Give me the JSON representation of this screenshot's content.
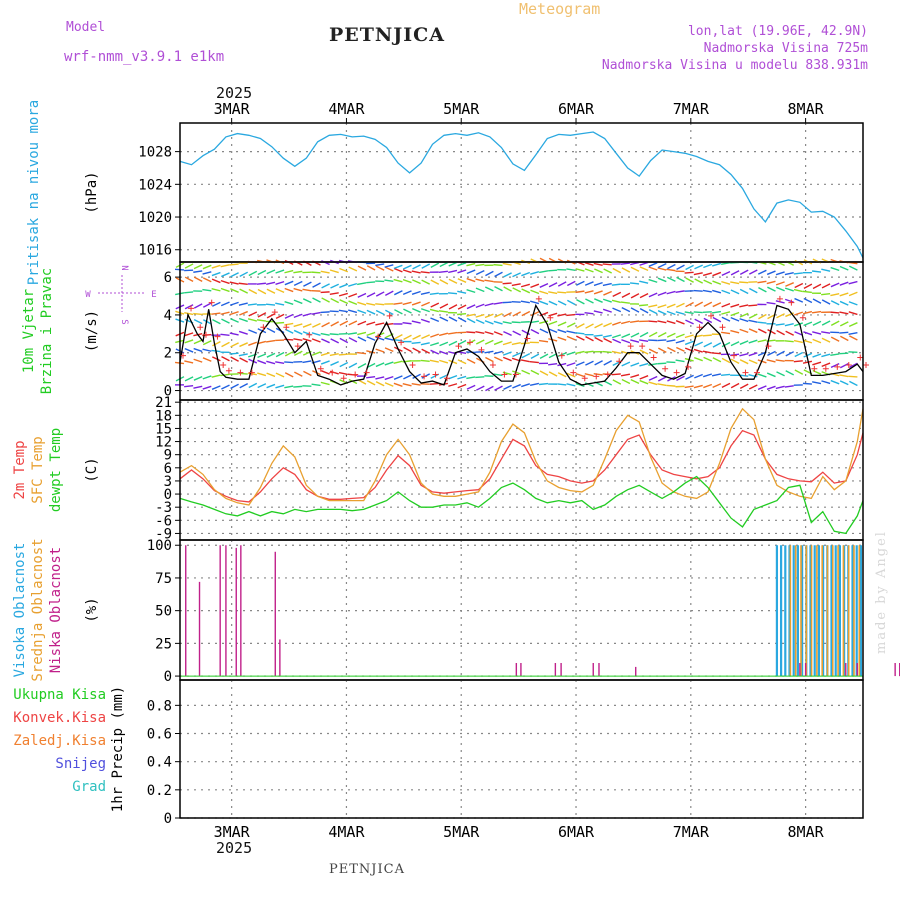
{
  "header": {
    "model_label": "Model",
    "model_name": "wrf-nmm_v3.9.1 e1km",
    "title": "PETNJICA",
    "meteogram_label": "Meteogram",
    "lonlat": "lon,lat (19.96E, 42.9N)",
    "elevation": "Nadmorska Visina 725m",
    "model_elevation": "Nadmorska Visina u modelu 838.931m",
    "year_top": "2025",
    "year_bottom": "2025",
    "footer": "PETNJICA",
    "credit": "made by Angel"
  },
  "colors": {
    "pressure": "#2aa8e0",
    "wind_label": "#22cc22",
    "temp2m": "#ee4444",
    "sfc_temp": "#e8a030",
    "dewpoint": "#22cc22",
    "high_cloud": "#2aa8e0",
    "mid_cloud": "#e8a030",
    "low_cloud": "#c0208a",
    "total_precip": "#22cc22",
    "conv_precip": "#ee4444",
    "frozen_precip": "#f08030",
    "snow": "#5050dd",
    "graupel": "#30c0c0"
  },
  "chart_data": {
    "type": "line",
    "x_ticks": [
      "3MAR",
      "4MAR",
      "5MAR",
      "6MAR",
      "7MAR",
      "8MAR"
    ],
    "x_range_days": [
      -0.45,
      5.5
    ],
    "panels": [
      {
        "id": "pressure",
        "labels": [
          "Pritisak na nivou mora"
        ],
        "unit": "(hPa)",
        "ylim": [
          1014.5,
          1031.5
        ],
        "yticks": [
          1016,
          1020,
          1024,
          1028
        ],
        "series": [
          {
            "key": "pressure",
            "x": [
              -0.45,
              -0.35,
              -0.25,
              -0.15,
              -0.05,
              0.05,
              0.15,
              0.25,
              0.35,
              0.45,
              0.55,
              0.65,
              0.75,
              0.85,
              0.95,
              1.05,
              1.15,
              1.25,
              1.35,
              1.45,
              1.55,
              1.65,
              1.75,
              1.85,
              1.95,
              2.05,
              2.15,
              2.25,
              2.35,
              2.45,
              2.55,
              2.65,
              2.75,
              2.85,
              2.95,
              3.05,
              3.15,
              3.25,
              3.35,
              3.45,
              3.55,
              3.65,
              3.75,
              3.85,
              3.95,
              4.05,
              4.15,
              4.25,
              4.35,
              4.45,
              4.55,
              4.65,
              4.75,
              4.85,
              4.95,
              5.05,
              5.15,
              5.25,
              5.35,
              5.45,
              5.5
            ],
            "y": [
              1026.8,
              1026.4,
              1027.5,
              1028.3,
              1029.8,
              1030.2,
              1030.0,
              1029.6,
              1028.6,
              1027.2,
              1026.2,
              1027.2,
              1029.2,
              1030.0,
              1030.1,
              1029.8,
              1029.9,
              1029.5,
              1028.5,
              1026.6,
              1025.4,
              1026.6,
              1028.9,
              1030.0,
              1030.2,
              1030.0,
              1030.3,
              1029.8,
              1028.5,
              1026.5,
              1025.7,
              1027.6,
              1029.6,
              1030.1,
              1030.0,
              1030.2,
              1030.4,
              1029.6,
              1027.8,
              1026.0,
              1025.0,
              1026.9,
              1028.2,
              1028.0,
              1027.8,
              1027.4,
              1026.8,
              1026.4,
              1025.2,
              1023.5,
              1021.0,
              1019.4,
              1021.7,
              1022.1,
              1021.8,
              1020.6,
              1020.7,
              1020.0,
              1018.3,
              1016.4,
              1015.0
            ]
          }
        ]
      },
      {
        "id": "wind",
        "labels": [
          "10m Vjetar",
          "Brzina i Pravac"
        ],
        "unit": "(m/s)",
        "ylim": [
          -0.5,
          6.8
        ],
        "yticks": [
          0,
          2,
          4,
          6
        ],
        "compass": {
          "n": "N",
          "s": "S",
          "w": "W",
          "e": "E"
        },
        "series": [
          {
            "key": "wind_speed",
            "x": [
              -0.45,
              -0.38,
              -0.3,
              -0.25,
              -0.2,
              -0.15,
              -0.1,
              -0.05,
              0.05,
              0.15,
              0.25,
              0.35,
              0.45,
              0.55,
              0.65,
              0.75,
              0.85,
              0.95,
              1.05,
              1.15,
              1.25,
              1.35,
              1.45,
              1.55,
              1.65,
              1.75,
              1.85,
              1.95,
              2.05,
              2.15,
              2.25,
              2.35,
              2.45,
              2.55,
              2.65,
              2.75,
              2.85,
              2.95,
              3.05,
              3.15,
              3.25,
              3.35,
              3.45,
              3.55,
              3.65,
              3.75,
              3.85,
              3.95,
              4.05,
              4.15,
              4.25,
              4.35,
              4.45,
              4.55,
              4.65,
              4.75,
              4.85,
              4.95,
              5.05,
              5.15,
              5.25,
              5.35,
              5.45,
              5.5
            ],
            "y": [
              1.5,
              4.0,
              3.0,
              2.6,
              4.3,
              2.5,
              1.0,
              0.7,
              0.6,
              0.6,
              3.0,
              3.8,
              3.0,
              2.0,
              2.6,
              0.8,
              0.6,
              0.3,
              0.5,
              0.6,
              2.5,
              3.6,
              2.2,
              1.0,
              0.4,
              0.5,
              0.3,
              2.0,
              2.2,
              1.8,
              1.0,
              0.5,
              0.5,
              2.4,
              4.5,
              3.5,
              1.5,
              0.6,
              0.3,
              0.4,
              0.5,
              1.2,
              2.0,
              2.0,
              1.4,
              0.8,
              0.6,
              0.9,
              3.0,
              3.6,
              3.0,
              1.5,
              0.6,
              0.6,
              2.0,
              4.5,
              4.3,
              3.5,
              0.8,
              0.8,
              0.9,
              1.0,
              1.4,
              1.0
            ]
          }
        ],
        "arrow_rows": [
          0.3,
          0.8,
          1.5,
          2.0,
          2.6,
          3.0,
          3.6,
          4.1,
          4.6,
          5.2,
          5.7,
          6.3,
          6.7
        ]
      },
      {
        "id": "temperature",
        "labels": [
          "2m Temp",
          "SFC Temp",
          "dewpt Temp"
        ],
        "unit": "(C)",
        "ylim": [
          -10.5,
          21.5
        ],
        "yticks": [
          -9,
          -6,
          -3,
          0,
          3,
          6,
          9,
          12,
          15,
          18,
          21
        ],
        "series": [
          {
            "key": "temp2m",
            "x": [
              -0.45,
              -0.35,
              -0.25,
              -0.15,
              -0.05,
              0.05,
              0.15,
              0.25,
              0.35,
              0.45,
              0.55,
              0.65,
              0.75,
              0.85,
              0.95,
              1.05,
              1.15,
              1.25,
              1.35,
              1.45,
              1.55,
              1.65,
              1.75,
              1.85,
              1.95,
              2.05,
              2.15,
              2.25,
              2.35,
              2.45,
              2.55,
              2.65,
              2.75,
              2.85,
              2.95,
              3.05,
              3.15,
              3.25,
              3.35,
              3.45,
              3.55,
              3.65,
              3.75,
              3.85,
              3.95,
              4.05,
              4.15,
              4.25,
              4.35,
              4.45,
              4.55,
              4.65,
              4.75,
              4.85,
              4.95,
              5.05,
              5.15,
              5.25,
              5.35,
              5.45,
              5.5
            ],
            "y": [
              3.5,
              5.5,
              3.5,
              0.8,
              -0.5,
              -1.5,
              -1.8,
              0.5,
              3.5,
              6.0,
              4.5,
              1.0,
              -0.5,
              -1.2,
              -1.2,
              -1.0,
              -0.8,
              1.5,
              5.5,
              8.8,
              6.5,
              2.0,
              0.5,
              0.2,
              0.5,
              0.8,
              1.0,
              3.5,
              8.0,
              12.5,
              11.0,
              6.5,
              4.5,
              4.0,
              3.0,
              2.5,
              3.0,
              5.5,
              9.0,
              12.5,
              13.5,
              9.0,
              5.5,
              4.5,
              4.0,
              3.5,
              4.0,
              6.0,
              11.0,
              14.5,
              13.5,
              8.0,
              4.5,
              3.5,
              3.0,
              2.8,
              5.0,
              2.5,
              3.0,
              9.0,
              14.0
            ]
          },
          {
            "key": "sfc_temp",
            "x": [
              -0.45,
              -0.35,
              -0.25,
              -0.15,
              -0.05,
              0.05,
              0.15,
              0.25,
              0.35,
              0.45,
              0.55,
              0.65,
              0.75,
              0.85,
              0.95,
              1.05,
              1.15,
              1.25,
              1.35,
              1.45,
              1.55,
              1.65,
              1.75,
              1.85,
              1.95,
              2.05,
              2.15,
              2.25,
              2.35,
              2.45,
              2.55,
              2.65,
              2.75,
              2.85,
              2.95,
              3.05,
              3.15,
              3.25,
              3.35,
              3.45,
              3.55,
              3.65,
              3.75,
              3.85,
              3.95,
              4.05,
              4.15,
              4.25,
              4.35,
              4.45,
              4.55,
              4.65,
              4.75,
              4.85,
              4.95,
              5.05,
              5.15,
              5.25,
              5.35,
              5.45,
              5.5
            ],
            "y": [
              5.0,
              6.5,
              4.5,
              1.0,
              -1.0,
              -2.0,
              -2.5,
              1.5,
              7.0,
              11.0,
              8.5,
              2.0,
              -0.5,
              -1.5,
              -1.5,
              -1.5,
              -1.5,
              3.0,
              9.0,
              12.5,
              9.0,
              2.5,
              0.0,
              -0.5,
              -0.5,
              0.0,
              0.5,
              5.0,
              12.0,
              16.0,
              14.0,
              7.5,
              3.0,
              1.5,
              0.8,
              0.5,
              2.0,
              8.0,
              14.5,
              18.0,
              16.5,
              8.5,
              2.5,
              0.5,
              -0.5,
              -1.0,
              0.5,
              7.0,
              15.0,
              19.5,
              17.0,
              8.0,
              2.0,
              0.5,
              -0.5,
              -1.0,
              4.0,
              1.0,
              3.0,
              12.0,
              19.5
            ]
          },
          {
            "key": "dewpoint",
            "x": [
              -0.45,
              -0.35,
              -0.25,
              -0.15,
              -0.05,
              0.05,
              0.15,
              0.25,
              0.35,
              0.45,
              0.55,
              0.65,
              0.75,
              0.85,
              0.95,
              1.05,
              1.15,
              1.25,
              1.35,
              1.45,
              1.55,
              1.65,
              1.75,
              1.85,
              1.95,
              2.05,
              2.15,
              2.25,
              2.35,
              2.45,
              2.55,
              2.65,
              2.75,
              2.85,
              2.95,
              3.05,
              3.15,
              3.25,
              3.35,
              3.45,
              3.55,
              3.65,
              3.75,
              3.85,
              3.95,
              4.05,
              4.15,
              4.25,
              4.35,
              4.45,
              4.55,
              4.65,
              4.75,
              4.85,
              4.95,
              5.05,
              5.15,
              5.25,
              5.35,
              5.45,
              5.5
            ],
            "y": [
              -1.0,
              -1.8,
              -2.5,
              -3.5,
              -4.5,
              -5.0,
              -4.0,
              -5.0,
              -4.0,
              -4.5,
              -3.5,
              -4.0,
              -3.5,
              -3.5,
              -3.5,
              -3.8,
              -3.5,
              -2.5,
              -1.5,
              0.5,
              -1.5,
              -3.0,
              -3.0,
              -2.5,
              -2.5,
              -2.0,
              -3.0,
              -1.0,
              1.5,
              2.5,
              1.0,
              -1.0,
              -2.0,
              -1.5,
              -2.0,
              -1.5,
              -3.5,
              -2.5,
              -0.5,
              1.0,
              2.0,
              0.5,
              -1.0,
              0.5,
              2.5,
              4.0,
              1.5,
              -2.0,
              -5.5,
              -7.5,
              -3.5,
              -2.5,
              -1.5,
              1.5,
              2.0,
              -6.5,
              -4.0,
              -8.5,
              -9.0,
              -5.0,
              -1.5
            ]
          }
        ]
      },
      {
        "id": "clouds",
        "labels": [
          "Visoka Oblacnost",
          "Srednja Oblacnost",
          "Niska Oblacnost"
        ],
        "unit": "(%)",
        "ylim": [
          -3,
          104
        ],
        "yticks": [
          0,
          25,
          50,
          75,
          100
        ],
        "series": [
          {
            "key": "low_cloud",
            "x": [
              -0.4,
              -0.28,
              -0.1,
              -0.05,
              0.04,
              0.08,
              0.38,
              0.42,
              2.48,
              2.52,
              2.82,
              2.87,
              3.15,
              3.2,
              3.52,
              4.95,
              5.0,
              5.35,
              5.45,
              5.78,
              5.82
            ],
            "y": [
              100,
              72,
              100,
              100,
              98,
              100,
              95,
              28,
              10,
              10,
              10,
              10,
              10,
              10,
              7,
              10,
              10,
              10,
              10,
              10,
              10
            ]
          },
          {
            "key": "high_cloud",
            "band_start": 4.75,
            "band_end": 5.5,
            "value": 100
          },
          {
            "key": "mid_cloud",
            "band_start": 4.85,
            "band_end": 5.5,
            "value": 100
          }
        ]
      },
      {
        "id": "precip",
        "labels": [
          "Ukupna Kisa",
          "Konvek.Kisa",
          "Zaledj.Kisa",
          "Snijeg",
          "Grad"
        ],
        "unit": "1hr Precip (mm)",
        "ylim": [
          0,
          0.98
        ],
        "yticks": [
          0,
          0.2,
          0.4,
          0.6,
          0.8
        ],
        "ytick_labels": [
          "0",
          "0.2",
          "0.4",
          "0.6",
          "0.8"
        ],
        "series": []
      }
    ]
  }
}
